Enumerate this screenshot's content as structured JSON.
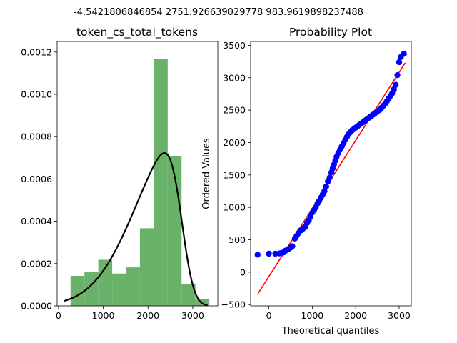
{
  "figure": {
    "suptitle": "-4.5421806846854 2751.926639029778 983.9619898237488",
    "background": "#ffffff"
  },
  "chart_data": [
    {
      "type": "histogram",
      "title": "token_cs_total_tokens",
      "xlabel": "",
      "ylabel": "",
      "xlim": [
        -30,
        3560
      ],
      "ylim": [
        0,
        0.00125
      ],
      "x_ticks": [
        0,
        1000,
        2000,
        3000
      ],
      "x_tick_labels": [
        "0",
        "1000",
        "2000",
        "3000"
      ],
      "y_ticks": [
        0,
        0.0002,
        0.0004,
        0.0006,
        0.0008,
        0.001,
        0.0012
      ],
      "y_tick_labels": [
        "0.0000",
        "0.0002",
        "0.0004",
        "0.0006",
        "0.0008",
        "0.0010",
        "0.0012"
      ],
      "grid": false,
      "bar_color": "#6ab26a",
      "bins": [
        {
          "x0": 270,
          "x1": 580,
          "density": 0.000142
        },
        {
          "x0": 580,
          "x1": 890,
          "density": 0.000162
        },
        {
          "x0": 890,
          "x1": 1200,
          "density": 0.000218
        },
        {
          "x0": 1200,
          "x1": 1510,
          "density": 0.000153
        },
        {
          "x0": 1510,
          "x1": 1820,
          "density": 0.000182
        },
        {
          "x0": 1820,
          "x1": 2130,
          "density": 0.000367
        },
        {
          "x0": 2130,
          "x1": 2440,
          "density": 0.001168
        },
        {
          "x0": 2440,
          "x1": 2750,
          "density": 0.000707
        },
        {
          "x0": 2750,
          "x1": 3060,
          "density": 0.000105
        },
        {
          "x0": 3060,
          "x1": 3370,
          "density": 3.1e-05
        }
      ],
      "fit_curve": {
        "color": "#000000",
        "distribution": "skewnorm",
        "shape": -4.5421806846854,
        "loc": 2751.926639029778,
        "scale": 983.9619898237488,
        "x_range": [
          130,
          3330
        ]
      }
    },
    {
      "type": "scatter",
      "title": "Probability Plot",
      "xlabel": "Theoretical quantiles",
      "ylabel": "Ordered Values",
      "xlim": [
        -420,
        3280
      ],
      "ylim": [
        -520,
        3560
      ],
      "x_ticks": [
        0,
        1000,
        2000,
        3000
      ],
      "x_tick_labels": [
        "0",
        "1000",
        "2000",
        "3000"
      ],
      "y_ticks": [
        -500,
        0,
        500,
        1000,
        1500,
        2000,
        2500,
        3000,
        3500
      ],
      "y_tick_labels": [
        "−500",
        "0",
        "500",
        "1000",
        "1500",
        "2000",
        "2500",
        "3000",
        "3500"
      ],
      "grid": false,
      "point_color": "#0000ff",
      "points": [
        [
          -260,
          270
        ],
        [
          0,
          285
        ],
        [
          150,
          285
        ],
        [
          240,
          290
        ],
        [
          300,
          300
        ],
        [
          340,
          305
        ],
        [
          380,
          330
        ],
        [
          420,
          345
        ],
        [
          460,
          360
        ],
        [
          500,
          380
        ],
        [
          540,
          400
        ],
        [
          600,
          520
        ],
        [
          640,
          560
        ],
        [
          680,
          600
        ],
        [
          720,
          640
        ],
        [
          760,
          650
        ],
        [
          800,
          680
        ],
        [
          840,
          700
        ],
        [
          880,
          760
        ],
        [
          920,
          800
        ],
        [
          960,
          860
        ],
        [
          1000,
          920
        ],
        [
          1040,
          960
        ],
        [
          1080,
          1000
        ],
        [
          1120,
          1060
        ],
        [
          1160,
          1100
        ],
        [
          1200,
          1150
        ],
        [
          1240,
          1200
        ],
        [
          1280,
          1250
        ],
        [
          1320,
          1320
        ],
        [
          1360,
          1400
        ],
        [
          1400,
          1460
        ],
        [
          1440,
          1540
        ],
        [
          1470,
          1600
        ],
        [
          1500,
          1660
        ],
        [
          1530,
          1720
        ],
        [
          1560,
          1780
        ],
        [
          1600,
          1840
        ],
        [
          1640,
          1890
        ],
        [
          1680,
          1940
        ],
        [
          1720,
          1990
        ],
        [
          1760,
          2040
        ],
        [
          1800,
          2090
        ],
        [
          1840,
          2130
        ],
        [
          1880,
          2160
        ],
        [
          1920,
          2190
        ],
        [
          1960,
          2210
        ],
        [
          2000,
          2230
        ],
        [
          2040,
          2250
        ],
        [
          2080,
          2270
        ],
        [
          2120,
          2290
        ],
        [
          2160,
          2310
        ],
        [
          2200,
          2330
        ],
        [
          2240,
          2350
        ],
        [
          2280,
          2370
        ],
        [
          2320,
          2390
        ],
        [
          2360,
          2410
        ],
        [
          2400,
          2430
        ],
        [
          2440,
          2450
        ],
        [
          2480,
          2470
        ],
        [
          2520,
          2490
        ],
        [
          2560,
          2510
        ],
        [
          2600,
          2540
        ],
        [
          2640,
          2570
        ],
        [
          2680,
          2600
        ],
        [
          2720,
          2640
        ],
        [
          2760,
          2680
        ],
        [
          2800,
          2720
        ],
        [
          2840,
          2760
        ],
        [
          2880,
          2820
        ],
        [
          2920,
          2890
        ],
        [
          2960,
          3040
        ],
        [
          3000,
          3240
        ],
        [
          3040,
          3320
        ],
        [
          3110,
          3370
        ]
      ],
      "fit_line": {
        "color": "#ff0000",
        "x": [
          -250,
          3140
        ],
        "y": [
          -330,
          3230
        ]
      }
    }
  ]
}
